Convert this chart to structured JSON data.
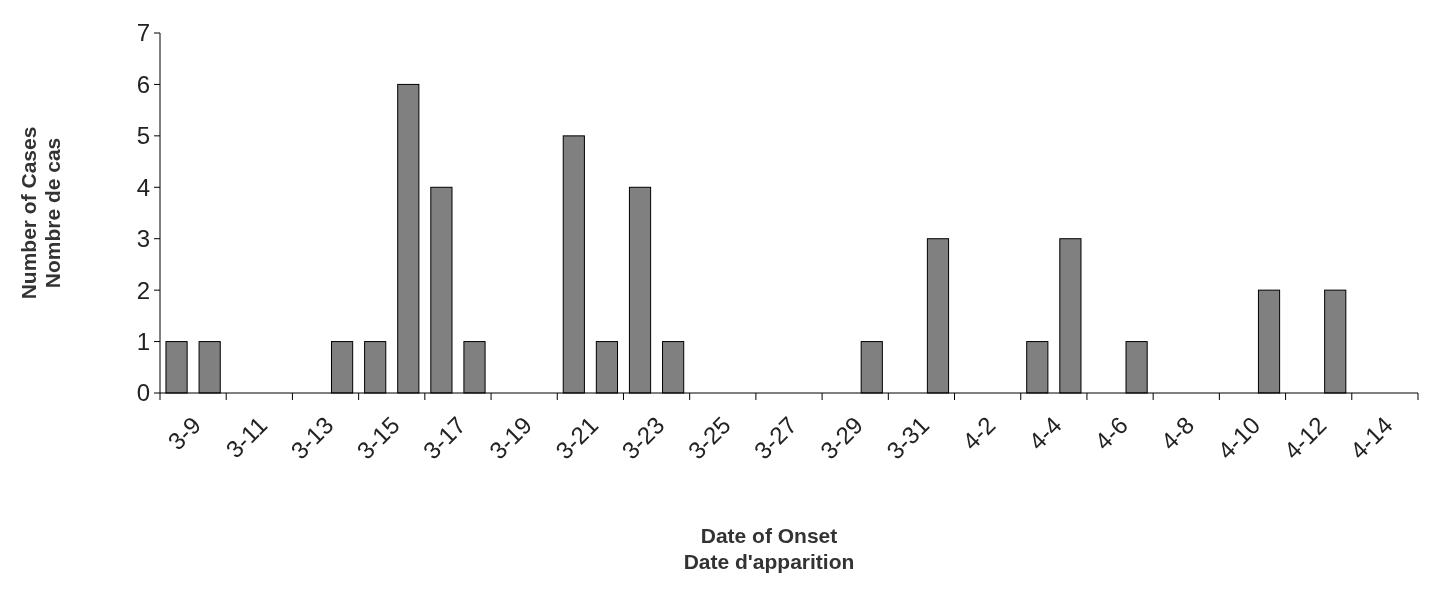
{
  "chart_data": {
    "type": "bar",
    "xlabel": "Date of Onset\nDate d'apparition",
    "ylabel": "Number of Cases\nNombre de cas",
    "categories": [
      "3-9",
      null,
      "3-11",
      null,
      "3-13",
      null,
      "3-15",
      null,
      "3-17",
      null,
      "3-19",
      null,
      "3-21",
      null,
      "3-23",
      null,
      "3-25",
      null,
      "3-27",
      null,
      "3-29",
      null,
      "3-31",
      null,
      "4-2",
      null,
      "4-4",
      null,
      "4-6",
      null,
      "4-8",
      null,
      "4-10",
      null,
      "4-12",
      null,
      "4-14",
      null
    ],
    "values": [
      1,
      1,
      0,
      0,
      0,
      1,
      1,
      6,
      4,
      1,
      0,
      0,
      5,
      1,
      4,
      1,
      0,
      0,
      0,
      0,
      0,
      1,
      0,
      3,
      0,
      0,
      1,
      3,
      0,
      1,
      0,
      0,
      0,
      2,
      0,
      2,
      0,
      0
    ],
    "color": "#808080",
    "ylim": [
      0,
      7
    ],
    "yticks": [
      0,
      1,
      2,
      3,
      4,
      5,
      6,
      7
    ],
    "grid": false
  }
}
